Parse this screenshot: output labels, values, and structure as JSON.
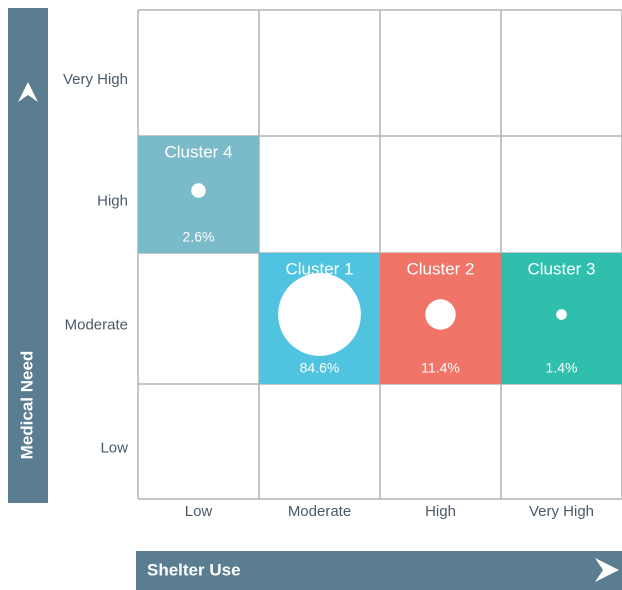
{
  "chart_data": {
    "type": "bubble-matrix",
    "x_label": "Shelter Use",
    "y_label": "Medical Need",
    "x_categories": [
      "Low",
      "Moderate",
      "High",
      "Very High"
    ],
    "y_categories": [
      "Low",
      "Moderate",
      "High",
      "Very High"
    ],
    "clusters": [
      {
        "name": "Cluster 4",
        "color": "#7bbac9",
        "x": "Low",
        "y": "High",
        "value": 2.6,
        "value_label": "2.6%"
      },
      {
        "name": "Cluster 1",
        "color": "#4fc3e0",
        "x": "Moderate",
        "y": "Moderate",
        "value": 84.6,
        "value_label": "84.6%"
      },
      {
        "name": "Cluster 2",
        "color": "#f07468",
        "x": "High",
        "y": "Moderate",
        "value": 11.4,
        "value_label": "11.4%"
      },
      {
        "name": "Cluster 3",
        "color": "#2fbfac",
        "x": "Very High",
        "y": "Moderate",
        "value": 1.4,
        "value_label": "1.4%"
      }
    ]
  }
}
